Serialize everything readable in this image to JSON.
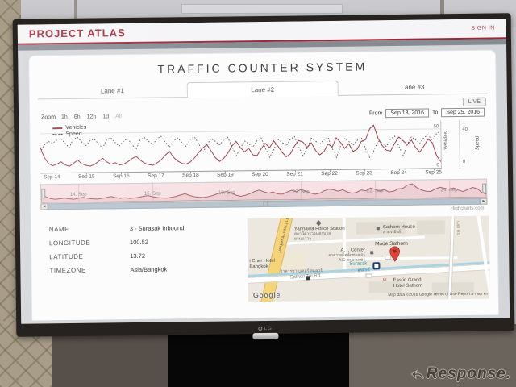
{
  "environment": {
    "monitor_brand": "LG",
    "watermark": "Response."
  },
  "page": {
    "brand": "PROJECT ATLAS",
    "sign_in": "SIGN IN",
    "title": "TRAFFIC COUNTER SYSTEM",
    "tabs": [
      {
        "label": "Lane #1",
        "active": false
      },
      {
        "label": "Lane #2",
        "active": true
      },
      {
        "label": "Lane #3",
        "active": false
      }
    ],
    "live_button": "LIVE",
    "toolbar": {
      "zoom_label": "Zoom",
      "zoom_options": [
        {
          "label": "1h",
          "muted": false
        },
        {
          "label": "6h",
          "muted": false
        },
        {
          "label": "12h",
          "muted": false
        },
        {
          "label": "1d",
          "muted": false
        },
        {
          "label": "All",
          "muted": true
        }
      ],
      "from_label": "From",
      "from_value": "Sep 13, 2016",
      "to_label": "To",
      "to_value": "Sep 25, 2016"
    },
    "credit": "Highcharts.com",
    "meta": [
      {
        "label": "NAME",
        "value": "3 - Surasak Inbound"
      },
      {
        "label": "LONGITUDE",
        "value": "100.52"
      },
      {
        "label": "LATITUDE",
        "value": "13.72"
      },
      {
        "label": "TIMEZONE",
        "value": "Asia/Bangkok"
      }
    ]
  },
  "chart_data": {
    "type": "line",
    "title": "",
    "x_range": [
      "Sep 13, 2016",
      "Sep 25, 2016"
    ],
    "x_ticks": [
      "Sep 14",
      "Sep 15",
      "Sep 16",
      "Sep 17",
      "Sep 18",
      "Sep 19",
      "Sep 20",
      "Sep 21",
      "Sep 22",
      "Sep 23",
      "Sep 24",
      "Sep 25"
    ],
    "yaxes": [
      {
        "label": "Vehicles",
        "ticks": [
          0,
          50
        ],
        "max": 56
      },
      {
        "label": "Speed",
        "ticks": [
          0,
          40
        ],
        "max": 46
      }
    ],
    "gridline_value": 50,
    "legend": [
      "Vehicles",
      "Speed"
    ],
    "legend_position": "top-left",
    "series": [
      {
        "name": "Vehicles",
        "color": "#9e3a46",
        "style": "solid",
        "values": [
          32,
          18,
          10,
          7,
          9,
          12,
          8,
          6,
          10,
          14,
          9,
          7,
          6,
          8,
          12,
          16,
          11,
          8,
          10,
          7,
          8,
          11,
          15,
          18,
          13,
          9,
          7,
          6,
          9,
          13,
          19,
          24,
          16,
          11,
          8,
          7,
          10,
          15,
          22,
          28,
          32,
          24,
          15,
          10,
          14,
          21,
          30,
          36,
          28,
          22,
          27,
          18,
          17,
          26,
          33,
          27,
          36,
          29,
          21,
          15,
          19,
          29,
          36,
          34,
          27,
          33,
          23,
          17,
          21,
          31,
          27,
          39,
          33,
          25,
          31,
          21,
          24,
          34,
          36,
          50,
          55,
          38,
          28,
          22,
          21,
          31,
          39,
          34,
          29,
          35,
          25,
          19,
          27,
          36,
          31,
          14,
          6
        ]
      },
      {
        "name": "Speed",
        "color": "#3f3f3f",
        "style": "dotted",
        "values": [
          20,
          28,
          32,
          30,
          33,
          35,
          30,
          25,
          34,
          36,
          31,
          27,
          32,
          34,
          29,
          24,
          33,
          35,
          30,
          26,
          31,
          34,
          28,
          22,
          32,
          35,
          31,
          27,
          33,
          36,
          30,
          24,
          31,
          34,
          29,
          25,
          32,
          35,
          28,
          18,
          26,
          33,
          30,
          26,
          31,
          34,
          24,
          14,
          22,
          30,
          27,
          23,
          30,
          33,
          22,
          12,
          20,
          31,
          28,
          24,
          31,
          34,
          23,
          13,
          21,
          32,
          29,
          25,
          30,
          33,
          21,
          11,
          23,
          31,
          28,
          24,
          29,
          32,
          20,
          10,
          18,
          28,
          26,
          22,
          30,
          33,
          22,
          12,
          24,
          32,
          29,
          25,
          31,
          34,
          28,
          35,
          38
        ]
      }
    ],
    "navigator": {
      "ticks": [
        "14. Sep",
        "16. Sep",
        "18. Sep",
        "20. Sep",
        "22. Sep",
        "24. Sep"
      ],
      "selected_range": "full"
    }
  },
  "map": {
    "pois": {
      "police_en": "Yannawa Police Station",
      "police_th1": "สถานีตำรวจนครบาล",
      "police_th2": "ยานนาวา",
      "sathorn_house_en": "Sathorn House",
      "sathorn_house_th": "สาธรเฮ้าส์",
      "mode_sathorn": "Mode Sathorn",
      "ai_center_en": "A. I. Center",
      "ai_center_th1": "อาคารสไตล์เซนเตอร์",
      "ai_center_th2": "AIC สาขาเพชร",
      "cher_hotel_1": "i Cher Hotel",
      "cher_hotel_2": "Bangkok",
      "chan_square_th": "อาคารชาญเคอร์ สแควร์",
      "surasak_en": "Surasak",
      "surasak_th": "สุรศักดิ์",
      "eastin_1": "Eastin Grand",
      "eastin_2": "Hotel Sathorn"
    },
    "roads": {
      "diagonal_th": "นราธิวาสราชนครินทร์",
      "sathon": "Sathon Tai Rd",
      "right_vertical": "uan Rd"
    },
    "google": "Google",
    "attribution": "Map data ©2016 Google   Terms of Use   Report a map err"
  }
}
